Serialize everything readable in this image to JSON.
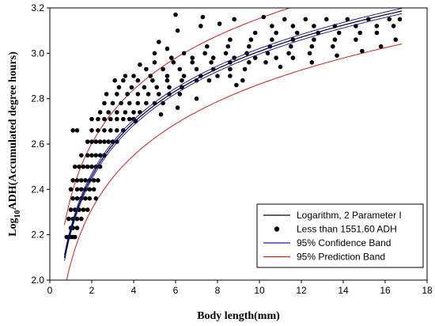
{
  "chart_data": {
    "type": "scatter",
    "xlabel": "Body length(mm)",
    "ylabel_main": "Log",
    "ylabel_sub": "10",
    "ylabel_rest": "ADH(Accumulated degree hours)",
    "xlim": [
      0,
      18
    ],
    "ylim": [
      2.0,
      3.2
    ],
    "x_ticks": [
      "0",
      "2",
      "4",
      "6",
      "8",
      "10",
      "12",
      "14",
      "16",
      "18"
    ],
    "y_ticks": [
      "2.0",
      "2.2",
      "2.4",
      "2.6",
      "2.8",
      "3.0",
      "3.2"
    ],
    "fit": {
      "model": "y = a + b*ln(x)",
      "a": 2.22,
      "b": 0.3425
    },
    "confidence_band_halfwidth": 0.012,
    "prediction_band_halfwidth": 0.145,
    "colors": {
      "fit": "#000000",
      "points": "#000000",
      "confidence": "#1f1fa8",
      "prediction": "#cc1f1f"
    },
    "legend_position": "bottom-right",
    "series": [
      {
        "name": "Logarithm, 2 Parameter I",
        "kind": "fit-line"
      },
      {
        "name": "Less than 1551.60 ADH",
        "kind": "points",
        "points": [
          [
            0.8,
            2.19
          ],
          [
            0.9,
            2.19
          ],
          [
            1.0,
            2.19
          ],
          [
            1.1,
            2.19
          ],
          [
            1.2,
            2.19
          ],
          [
            1.0,
            2.23
          ],
          [
            1.1,
            2.23
          ],
          [
            1.3,
            2.23
          ],
          [
            0.9,
            2.27
          ],
          [
            1.1,
            2.27
          ],
          [
            1.3,
            2.27
          ],
          [
            1.5,
            2.27
          ],
          [
            1.0,
            2.31
          ],
          [
            1.2,
            2.31
          ],
          [
            1.4,
            2.31
          ],
          [
            1.6,
            2.31
          ],
          [
            1.8,
            2.31
          ],
          [
            1.1,
            2.36
          ],
          [
            1.3,
            2.36
          ],
          [
            1.5,
            2.36
          ],
          [
            1.7,
            2.36
          ],
          [
            1.9,
            2.36
          ],
          [
            2.2,
            2.36
          ],
          [
            1.0,
            2.4
          ],
          [
            1.3,
            2.4
          ],
          [
            1.5,
            2.4
          ],
          [
            1.7,
            2.4
          ],
          [
            1.9,
            2.4
          ],
          [
            2.1,
            2.4
          ],
          [
            1.1,
            2.44
          ],
          [
            1.3,
            2.44
          ],
          [
            1.5,
            2.44
          ],
          [
            1.7,
            2.44
          ],
          [
            1.9,
            2.44
          ],
          [
            2.1,
            2.44
          ],
          [
            2.3,
            2.44
          ],
          [
            1.2,
            2.5
          ],
          [
            1.4,
            2.5
          ],
          [
            1.6,
            2.5
          ],
          [
            1.8,
            2.5
          ],
          [
            2.0,
            2.5
          ],
          [
            2.2,
            2.5
          ],
          [
            2.4,
            2.5
          ],
          [
            1.5,
            2.55
          ],
          [
            1.8,
            2.55
          ],
          [
            2.0,
            2.55
          ],
          [
            2.2,
            2.55
          ],
          [
            2.4,
            2.55
          ],
          [
            2.6,
            2.55
          ],
          [
            1.8,
            2.61
          ],
          [
            2.0,
            2.61
          ],
          [
            2.2,
            2.61
          ],
          [
            2.4,
            2.61
          ],
          [
            2.6,
            2.61
          ],
          [
            2.8,
            2.61
          ],
          [
            3.0,
            2.61
          ],
          [
            3.2,
            2.61
          ],
          [
            1.1,
            2.66
          ],
          [
            1.3,
            2.66
          ],
          [
            2.0,
            2.66
          ],
          [
            2.3,
            2.66
          ],
          [
            2.6,
            2.66
          ],
          [
            2.9,
            2.66
          ],
          [
            3.2,
            2.66
          ],
          [
            3.5,
            2.66
          ],
          [
            2.0,
            2.71
          ],
          [
            2.3,
            2.71
          ],
          [
            2.6,
            2.71
          ],
          [
            2.9,
            2.71
          ],
          [
            3.2,
            2.71
          ],
          [
            3.5,
            2.71
          ],
          [
            3.8,
            2.71
          ],
          [
            4.0,
            2.71
          ],
          [
            2.4,
            2.74
          ],
          [
            2.8,
            2.74
          ],
          [
            3.2,
            2.74
          ],
          [
            3.6,
            2.74
          ],
          [
            4.0,
            2.74
          ],
          [
            4.3,
            2.74
          ],
          [
            2.6,
            2.78
          ],
          [
            3.0,
            2.78
          ],
          [
            3.4,
            2.78
          ],
          [
            3.8,
            2.78
          ],
          [
            4.2,
            2.78
          ],
          [
            4.6,
            2.78
          ],
          [
            5.0,
            2.78
          ],
          [
            5.4,
            2.78
          ],
          [
            2.7,
            2.82
          ],
          [
            3.2,
            2.82
          ],
          [
            3.7,
            2.82
          ],
          [
            4.2,
            2.82
          ],
          [
            4.7,
            2.82
          ],
          [
            5.2,
            2.82
          ],
          [
            5.7,
            2.82
          ],
          [
            6.2,
            2.82
          ],
          [
            3.3,
            2.85
          ],
          [
            3.9,
            2.85
          ],
          [
            4.5,
            2.85
          ],
          [
            5.1,
            2.85
          ],
          [
            5.7,
            2.85
          ],
          [
            6.3,
            2.85
          ],
          [
            3.5,
            2.88
          ],
          [
            4.2,
            2.88
          ],
          [
            4.9,
            2.88
          ],
          [
            5.6,
            2.88
          ],
          [
            6.3,
            2.88
          ],
          [
            7.0,
            2.88
          ],
          [
            7.6,
            2.88
          ],
          [
            4.0,
            2.9
          ],
          [
            4.8,
            2.9
          ],
          [
            5.6,
            2.9
          ],
          [
            6.4,
            2.9
          ],
          [
            7.2,
            2.9
          ],
          [
            8.0,
            2.9
          ],
          [
            8.6,
            2.9
          ],
          [
            4.6,
            2.93
          ],
          [
            5.4,
            2.93
          ],
          [
            6.2,
            2.93
          ],
          [
            7.0,
            2.93
          ],
          [
            7.8,
            2.93
          ],
          [
            8.6,
            2.93
          ],
          [
            9.3,
            2.93
          ],
          [
            5.0,
            2.96
          ],
          [
            5.9,
            2.96
          ],
          [
            6.8,
            2.96
          ],
          [
            7.7,
            2.96
          ],
          [
            8.6,
            2.96
          ],
          [
            9.5,
            2.96
          ],
          [
            10.3,
            2.96
          ],
          [
            5.8,
            2.98
          ],
          [
            6.8,
            2.98
          ],
          [
            7.8,
            2.98
          ],
          [
            8.8,
            2.98
          ],
          [
            9.8,
            2.98
          ],
          [
            10.8,
            2.98
          ],
          [
            11.6,
            2.98
          ],
          [
            6.4,
            3.0
          ],
          [
            7.4,
            3.0
          ],
          [
            8.4,
            3.0
          ],
          [
            9.4,
            3.0
          ],
          [
            10.4,
            3.0
          ],
          [
            11.4,
            3.0
          ],
          [
            12.4,
            3.0
          ],
          [
            7.5,
            3.03
          ],
          [
            8.5,
            3.03
          ],
          [
            9.5,
            3.03
          ],
          [
            10.5,
            3.03
          ],
          [
            11.5,
            3.03
          ],
          [
            12.5,
            3.03
          ],
          [
            13.5,
            3.03
          ],
          [
            8.6,
            3.06
          ],
          [
            9.6,
            3.06
          ],
          [
            10.6,
            3.06
          ],
          [
            11.6,
            3.06
          ],
          [
            12.6,
            3.06
          ],
          [
            13.6,
            3.06
          ],
          [
            14.6,
            3.06
          ],
          [
            9.8,
            3.09
          ],
          [
            10.8,
            3.09
          ],
          [
            11.8,
            3.09
          ],
          [
            12.8,
            3.09
          ],
          [
            13.8,
            3.09
          ],
          [
            14.8,
            3.09
          ],
          [
            15.6,
            3.09
          ],
          [
            10.6,
            3.12
          ],
          [
            11.6,
            3.12
          ],
          [
            12.6,
            3.12
          ],
          [
            13.6,
            3.12
          ],
          [
            14.6,
            3.12
          ],
          [
            15.6,
            3.12
          ],
          [
            16.4,
            3.12
          ],
          [
            11.2,
            3.15
          ],
          [
            12.2,
            3.15
          ],
          [
            13.2,
            3.15
          ],
          [
            14.2,
            3.15
          ],
          [
            15.2,
            3.15
          ],
          [
            16.2,
            3.15
          ],
          [
            16.7,
            3.15
          ],
          [
            6.0,
            3.17
          ],
          [
            7.3,
            3.16
          ],
          [
            8.8,
            3.15
          ],
          [
            10.2,
            3.16
          ],
          [
            5.2,
            3.05
          ],
          [
            6.1,
            3.1
          ],
          [
            7.2,
            3.12
          ],
          [
            8.1,
            3.13
          ],
          [
            4.3,
            2.95
          ],
          [
            5.0,
            3.0
          ],
          [
            5.6,
            3.02
          ],
          [
            3.1,
            2.88
          ],
          [
            3.6,
            2.9
          ],
          [
            8.9,
            2.86
          ],
          [
            9.2,
            2.88
          ],
          [
            11.0,
            2.94
          ],
          [
            12.5,
            2.96
          ],
          [
            13.7,
            2.99
          ],
          [
            14.9,
            3.01
          ],
          [
            15.8,
            3.03
          ],
          [
            16.5,
            3.06
          ],
          [
            4.1,
            2.7
          ],
          [
            5.3,
            2.73
          ],
          [
            6.1,
            2.76
          ],
          [
            7.0,
            2.8
          ]
        ]
      },
      {
        "name": "95% Confidence Band",
        "kind": "band"
      },
      {
        "name": "95% Prediction Band",
        "kind": "band"
      }
    ]
  }
}
